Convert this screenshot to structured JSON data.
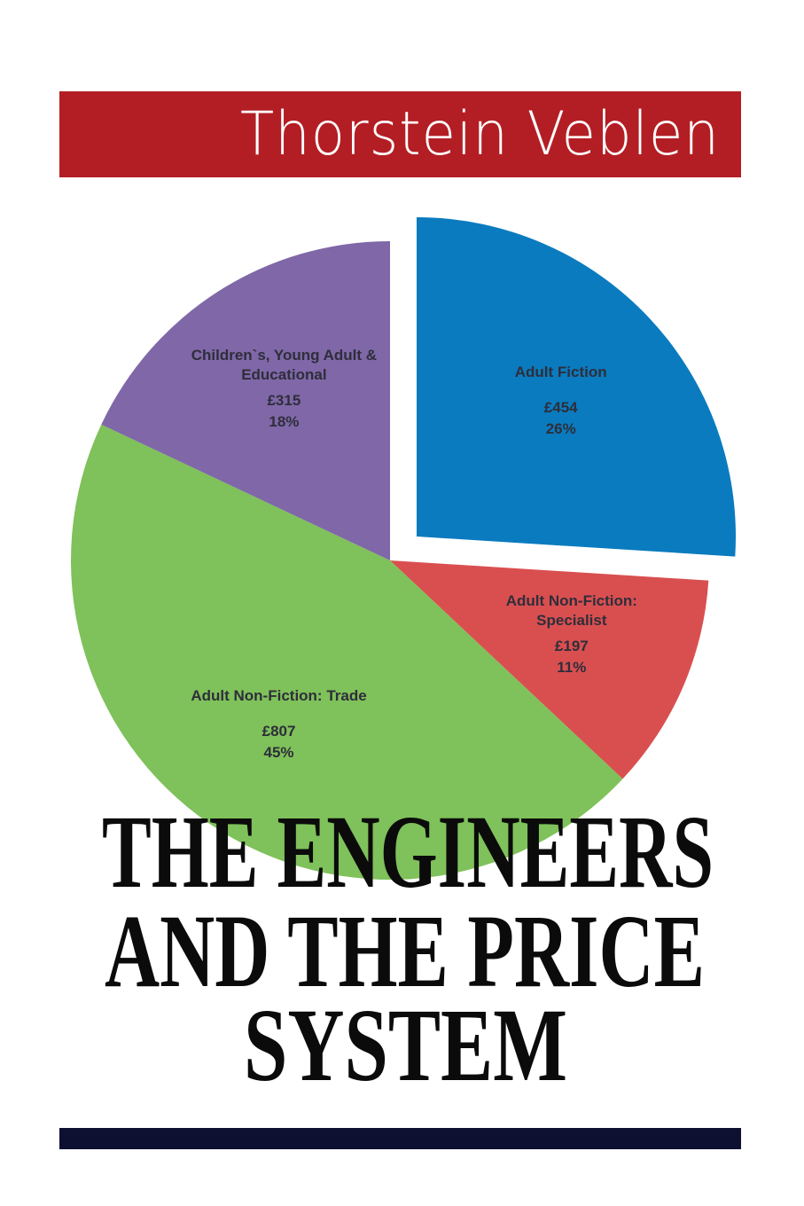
{
  "header": {
    "author": "Thorstein Veblen"
  },
  "title_lines": [
    "THE ENGINEERS",
    "AND THE PRICE",
    "SYSTEM"
  ],
  "chart_data": {
    "type": "pie",
    "categories": [
      "Adult Fiction",
      "Adult Non-Fiction: Specialist",
      "Adult Non-Fiction: Trade",
      "Children`s, Young Adult & Educational"
    ],
    "amounts": [
      "£454",
      "£197",
      "£807",
      "£315"
    ],
    "values": [
      26,
      11,
      45,
      18
    ],
    "value_labels": [
      "26%",
      "11%",
      "45%",
      "18%"
    ],
    "colors": [
      "#0a7bbf",
      "#d94f50",
      "#7fc15a",
      "#7f67a8"
    ]
  }
}
